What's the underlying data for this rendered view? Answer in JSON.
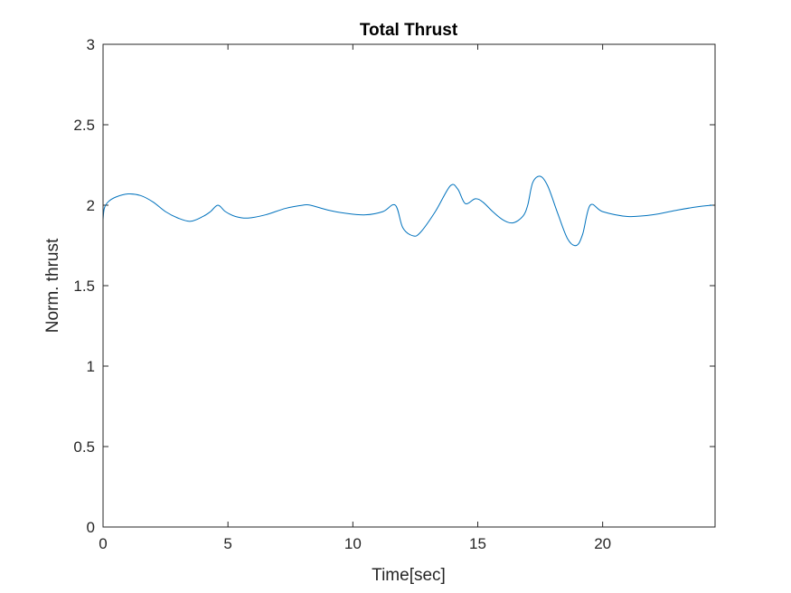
{
  "chart_data": {
    "type": "line",
    "title": "Total Thrust",
    "xlabel": "Time[sec]",
    "ylabel": "Norm. thrust",
    "xlim": [
      0,
      24.5
    ],
    "ylim": [
      0,
      3
    ],
    "xticks": [
      0,
      5,
      10,
      15,
      20
    ],
    "xtick_labels": [
      "0",
      "5",
      "10",
      "15",
      "20"
    ],
    "yticks": [
      0,
      0.5,
      1,
      1.5,
      2,
      2.5,
      3
    ],
    "ytick_labels": [
      "0",
      "0.5",
      "1",
      "1.5",
      "2",
      "2.5",
      "3"
    ],
    "grid": false,
    "box": true,
    "series": [
      {
        "color": "#0072BD",
        "x": [
          0,
          0.05,
          0.2,
          0.5,
          1.0,
          1.5,
          2.0,
          2.5,
          3.0,
          3.5,
          4.0,
          4.3,
          4.6,
          4.9,
          5.3,
          5.8,
          6.5,
          7.3,
          8.0,
          8.3,
          9.0,
          9.7,
          10.5,
          11.2,
          11.7,
          12.0,
          12.4,
          12.7,
          13.3,
          13.9,
          14.2,
          14.5,
          14.9,
          15.2,
          15.6,
          16.0,
          16.4,
          16.8,
          17.0,
          17.2,
          17.5,
          17.8,
          18.2,
          18.6,
          18.95,
          19.2,
          19.5,
          20.0,
          21.0,
          22.0,
          23.0,
          23.8,
          24.4
        ],
        "y": [
          1.91,
          1.98,
          2.02,
          2.05,
          2.07,
          2.06,
          2.02,
          1.96,
          1.92,
          1.9,
          1.93,
          1.96,
          2.0,
          1.96,
          1.93,
          1.92,
          1.94,
          1.98,
          2.0,
          2.0,
          1.97,
          1.95,
          1.94,
          1.96,
          2.0,
          1.86,
          1.81,
          1.83,
          1.96,
          2.12,
          2.1,
          2.01,
          2.04,
          2.02,
          1.96,
          1.91,
          1.89,
          1.93,
          2.0,
          2.14,
          2.18,
          2.12,
          1.95,
          1.79,
          1.75,
          1.82,
          2.0,
          1.96,
          1.93,
          1.94,
          1.97,
          1.99,
          2.0
        ]
      }
    ]
  }
}
